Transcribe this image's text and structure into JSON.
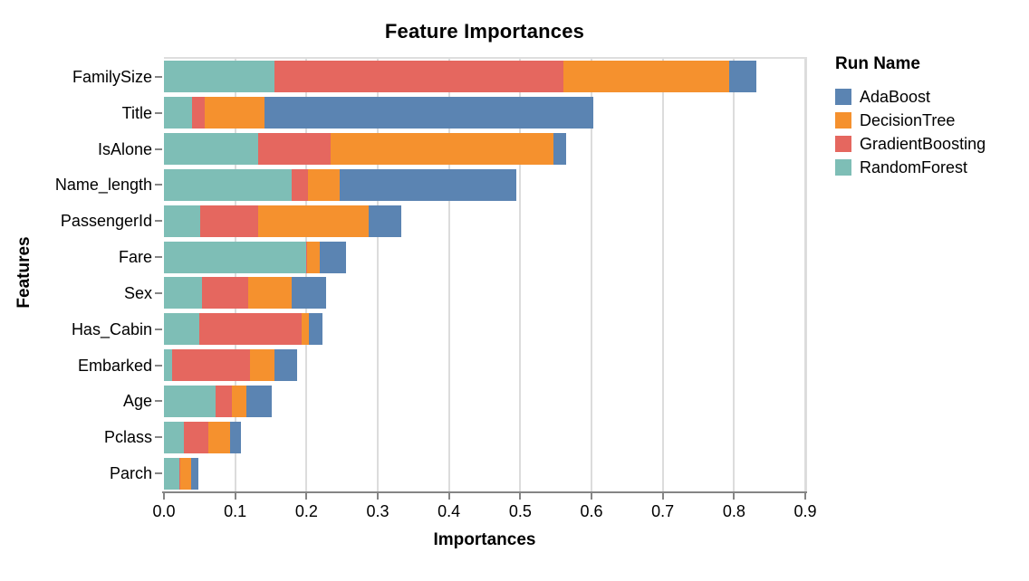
{
  "chart_data": {
    "type": "bar",
    "orientation": "horizontal",
    "stacked": true,
    "title": "Feature Importances",
    "xlabel": "Importances",
    "ylabel": "Features",
    "legend_title": "Run Name",
    "legend_position": "right",
    "grid": true,
    "xlim": [
      0.0,
      0.9
    ],
    "xtick_values": [
      0.0,
      0.1,
      0.2,
      0.3,
      0.4,
      0.5,
      0.6,
      0.7,
      0.8,
      0.9
    ],
    "xtick_labels": [
      "0.0",
      "0.1",
      "0.2",
      "0.3",
      "0.4",
      "0.5",
      "0.6",
      "0.7",
      "0.8",
      "0.9"
    ],
    "categories": [
      "FamilySize",
      "Title",
      "IsAlone",
      "Name_length",
      "PassengerId",
      "Fare",
      "Sex",
      "Has_Cabin",
      "Embarked",
      "Age",
      "Pclass",
      "Parch"
    ],
    "series": [
      {
        "name": "RandomForest",
        "color": "#7ebeb6",
        "values": [
          0.155,
          0.039,
          0.132,
          0.179,
          0.051,
          0.2,
          0.053,
          0.05,
          0.012,
          0.073,
          0.028,
          0.021
        ]
      },
      {
        "name": "GradientBoosting",
        "color": "#e5675f",
        "values": [
          0.405,
          0.018,
          0.102,
          0.023,
          0.081,
          0.001,
          0.065,
          0.143,
          0.109,
          0.022,
          0.034,
          0.002
        ]
      },
      {
        "name": "DecisionTree",
        "color": "#f5912e",
        "values": [
          0.233,
          0.084,
          0.313,
          0.045,
          0.155,
          0.018,
          0.061,
          0.01,
          0.034,
          0.021,
          0.031,
          0.015
        ]
      },
      {
        "name": "AdaBoost",
        "color": "#5b84b2",
        "values": [
          0.038,
          0.462,
          0.018,
          0.247,
          0.046,
          0.036,
          0.048,
          0.02,
          0.032,
          0.035,
          0.015,
          0.01
        ]
      }
    ],
    "legend_entries": [
      "AdaBoost",
      "DecisionTree",
      "GradientBoosting",
      "RandomForest"
    ],
    "colors": {
      "grid": "#dcdcdc",
      "plot_border": "#dedede",
      "axis_line": "#858585",
      "text": "#000000"
    }
  }
}
